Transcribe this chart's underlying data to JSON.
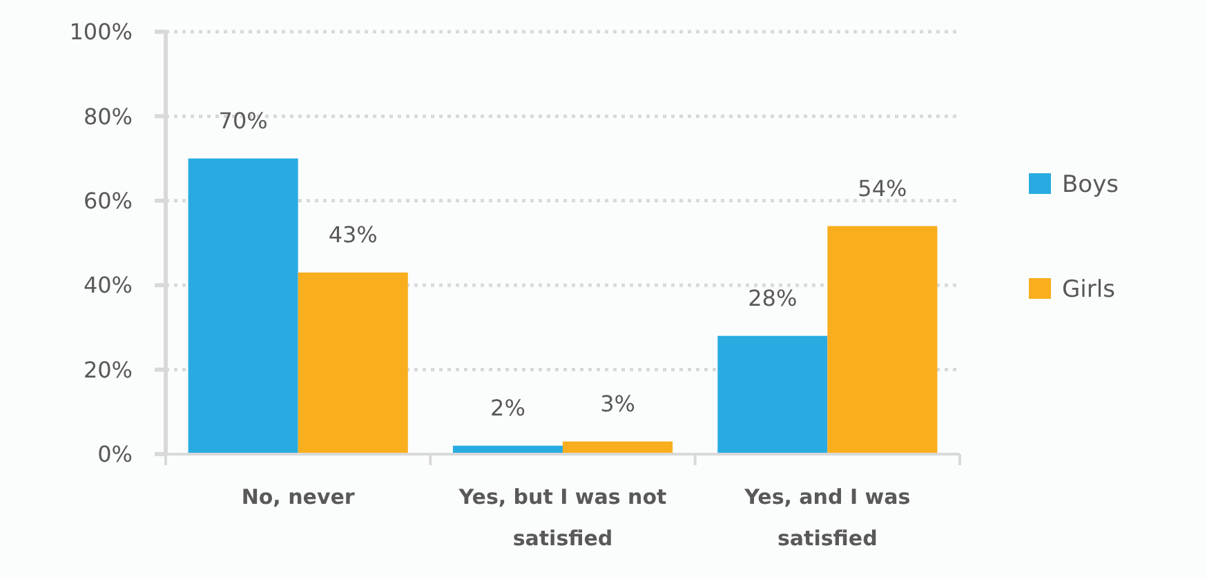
{
  "chart_data": {
    "type": "bar",
    "categories": [
      "No, never",
      "Yes, but I was not satisfied",
      "Yes, and I was satisfied"
    ],
    "series": [
      {
        "name": "Boys",
        "color": "#29abe2",
        "values": [
          70,
          2,
          28
        ],
        "value_labels": [
          "70%",
          "2%",
          "28%"
        ]
      },
      {
        "name": "Girls",
        "color": "#f9ae1e",
        "values": [
          43,
          3,
          54
        ],
        "value_labels": [
          "43%",
          "3%",
          "54%"
        ]
      }
    ],
    "ylim": [
      0,
      100
    ],
    "yticks": [
      {
        "value": 0,
        "label": "0%"
      },
      {
        "value": 20,
        "label": "20%"
      },
      {
        "value": 40,
        "label": "40%"
      },
      {
        "value": 60,
        "label": "60%"
      },
      {
        "value": 80,
        "label": "80%"
      },
      {
        "value": 100,
        "label": "100%"
      }
    ],
    "grid": "y",
    "legend": "right"
  }
}
